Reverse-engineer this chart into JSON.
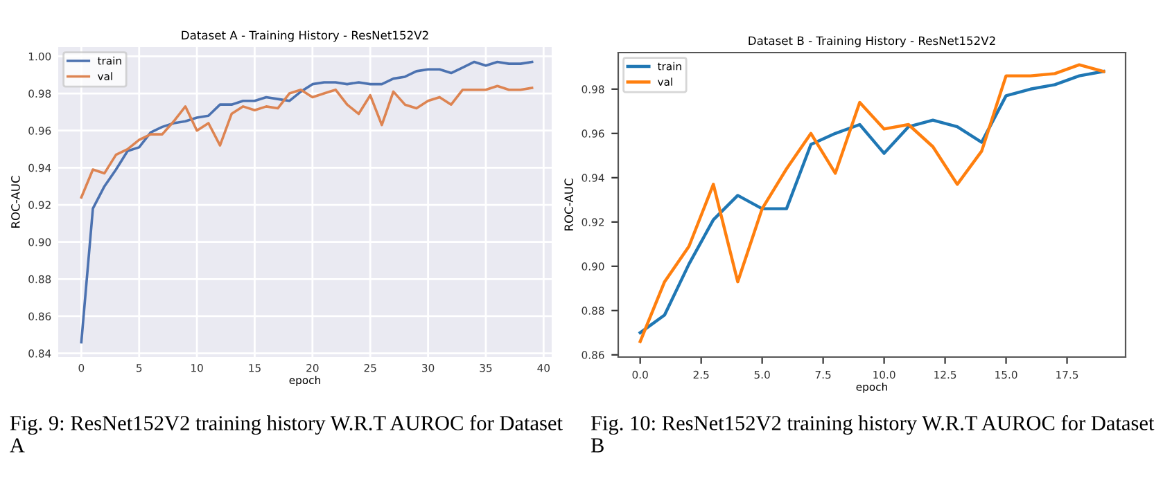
{
  "chart_data": [
    {
      "type": "line",
      "title": "Dataset A - Training History - ResNet152V2",
      "xlabel": "epoch",
      "ylabel": "ROC-AUC",
      "x": [
        0,
        1,
        2,
        3,
        4,
        5,
        6,
        7,
        8,
        9,
        10,
        11,
        12,
        13,
        14,
        15,
        16,
        17,
        18,
        19,
        20,
        21,
        22,
        23,
        24,
        25,
        26,
        27,
        28,
        29,
        30,
        31,
        32,
        33,
        34,
        35,
        36,
        37,
        38,
        39
      ],
      "series": [
        {
          "name": "train",
          "color": "#4c72b0",
          "values": [
            0.846,
            0.918,
            0.93,
            0.939,
            0.949,
            0.951,
            0.959,
            0.962,
            0.964,
            0.965,
            0.967,
            0.968,
            0.974,
            0.974,
            0.976,
            0.976,
            0.978,
            0.977,
            0.976,
            0.981,
            0.985,
            0.986,
            0.986,
            0.985,
            0.986,
            0.985,
            0.985,
            0.988,
            0.989,
            0.992,
            0.993,
            0.993,
            0.991,
            0.994,
            0.997,
            0.995,
            0.997,
            0.996,
            0.996,
            0.997
          ]
        },
        {
          "name": "val",
          "color": "#dd8452",
          "values": [
            0.924,
            0.939,
            0.937,
            0.947,
            0.95,
            0.955,
            0.958,
            0.958,
            0.965,
            0.973,
            0.96,
            0.964,
            0.952,
            0.969,
            0.973,
            0.971,
            0.973,
            0.972,
            0.98,
            0.982,
            0.978,
            0.98,
            0.982,
            0.974,
            0.969,
            0.979,
            0.963,
            0.981,
            0.974,
            0.972,
            0.976,
            0.978,
            0.974,
            0.982,
            0.982,
            0.982,
            0.984,
            0.982,
            0.982,
            0.983
          ]
        }
      ],
      "xlim": [
        -2,
        40.7
      ],
      "ylim": [
        0.838,
        1.005
      ],
      "xticks": [
        0,
        5,
        10,
        15,
        20,
        25,
        30,
        35,
        40
      ],
      "yticks": [
        {
          "value": 0.84,
          "label": "0.84"
        },
        {
          "value": 0.86,
          "label": "0.86"
        },
        {
          "value": 0.88,
          "label": "0.88"
        },
        {
          "value": 0.9,
          "label": "0.90"
        },
        {
          "value": 0.92,
          "label": "0.92"
        },
        {
          "value": 0.94,
          "label": "0.94"
        },
        {
          "value": 0.96,
          "label": "0.96"
        },
        {
          "value": 0.98,
          "label": "0.98"
        },
        {
          "value": 1.0,
          "label": "1.00"
        }
      ],
      "grid": true,
      "legend": "top left",
      "annotations": [
        "Fig. 9: ResNet152V2 training history W.R.T AUROC for Dataset A"
      ]
    },
    {
      "type": "line",
      "title": "Dataset B - Training History - ResNet152V2",
      "xlabel": "epoch",
      "ylabel": "ROC-AUC",
      "x": [
        0,
        1,
        2,
        3,
        4,
        5,
        6,
        7,
        8,
        9,
        10,
        11,
        12,
        13,
        14,
        15,
        16,
        17,
        18,
        19
      ],
      "series": [
        {
          "name": "train",
          "color": "#1f77b4",
          "values": [
            0.87,
            0.878,
            0.901,
            0.921,
            0.932,
            0.926,
            0.926,
            0.955,
            0.96,
            0.964,
            0.951,
            0.963,
            0.966,
            0.963,
            0.956,
            0.977,
            0.98,
            0.982,
            0.986,
            0.988
          ]
        },
        {
          "name": "val",
          "color": "#ff7f0e",
          "values": [
            0.866,
            0.893,
            0.909,
            0.937,
            0.893,
            0.926,
            0.944,
            0.96,
            0.942,
            0.974,
            0.962,
            0.964,
            0.954,
            0.937,
            0.952,
            0.986,
            0.986,
            0.987,
            0.991,
            0.988
          ]
        }
      ],
      "xlim": [
        -0.9,
        19.9
      ],
      "ylim": [
        0.859,
        0.9965
      ],
      "xticks": [
        {
          "value": 0,
          "label": "0.0"
        },
        {
          "value": 2.5,
          "label": "2.5"
        },
        {
          "value": 5,
          "label": "5.0"
        },
        {
          "value": 7.5,
          "label": "7.5"
        },
        {
          "value": 10,
          "label": "10.0"
        },
        {
          "value": 12.5,
          "label": "12.5"
        },
        {
          "value": 15,
          "label": "15.0"
        },
        {
          "value": 17.5,
          "label": "17.5"
        }
      ],
      "yticks": [
        {
          "value": 0.86,
          "label": "0.86"
        },
        {
          "value": 0.88,
          "label": "0.88"
        },
        {
          "value": 0.9,
          "label": "0.90"
        },
        {
          "value": 0.92,
          "label": "0.92"
        },
        {
          "value": 0.94,
          "label": "0.94"
        },
        {
          "value": 0.96,
          "label": "0.96"
        },
        {
          "value": 0.98,
          "label": "0.98"
        }
      ],
      "grid": false,
      "legend": "top left",
      "annotations": [
        "Fig. 10: ResNet152V2 training history W.R.T AUROC for Dataset B"
      ]
    }
  ]
}
